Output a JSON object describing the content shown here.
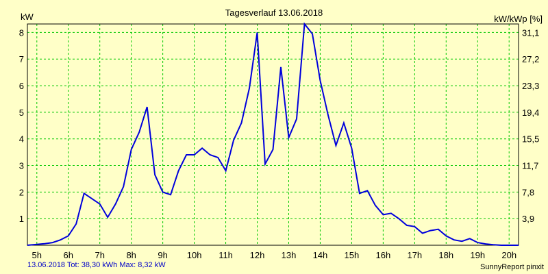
{
  "chart_data": {
    "type": "line",
    "title": "Tagesverlauf 13.06.2018",
    "ylabel_left": "kW",
    "ylabel_right": "kW/kWp [%]",
    "ylim": [
      0,
      8.32
    ],
    "xlim": [
      4.7,
      20.3
    ],
    "x_ticks": [
      "5h",
      "6h",
      "7h",
      "8h",
      "9h",
      "10h",
      "11h",
      "12h",
      "13h",
      "14h",
      "15h",
      "16h",
      "17h",
      "18h",
      "19h",
      "20h"
    ],
    "y_ticks_left": [
      "1",
      "2",
      "3",
      "4",
      "5",
      "6",
      "7",
      "8"
    ],
    "y_ticks_right": [
      "3,9",
      "7,8",
      "11,7",
      "15,5",
      "19,4",
      "23,3",
      "27,2",
      "31,1"
    ],
    "grid": true,
    "line_color": "#0000dc",
    "grid_color": "#00c800",
    "series": [
      {
        "x": [
          4.7,
          5.0,
          5.25,
          5.5,
          5.75,
          6.0,
          6.25,
          6.5,
          6.75,
          7.0,
          7.25,
          7.5,
          7.75,
          8.0,
          8.25,
          8.5,
          8.75,
          9.0,
          9.25,
          9.5,
          9.75,
          10.0,
          10.25,
          10.5,
          10.75,
          11.0,
          11.25,
          11.5,
          11.75,
          12.0,
          12.25,
          12.5,
          12.75,
          13.0,
          13.25,
          13.5,
          13.75,
          14.0,
          14.25,
          14.5,
          14.75,
          15.0,
          15.25,
          15.5,
          15.75,
          16.0,
          16.25,
          16.5,
          16.75,
          17.0,
          17.25,
          17.5,
          17.75,
          18.0,
          18.25,
          18.5,
          18.75,
          19.0,
          19.25,
          19.5,
          19.75,
          20.0,
          20.3
        ],
        "values": [
          0.0,
          0.03,
          0.06,
          0.1,
          0.2,
          0.35,
          0.8,
          1.95,
          1.75,
          1.55,
          1.05,
          1.55,
          2.2,
          3.6,
          4.25,
          5.2,
          2.65,
          2.0,
          1.9,
          2.8,
          3.4,
          3.4,
          3.65,
          3.4,
          3.3,
          2.8,
          3.95,
          4.6,
          5.9,
          8.0,
          3.05,
          3.6,
          6.7,
          4.05,
          4.75,
          8.32,
          7.95,
          6.2,
          4.9,
          3.75,
          4.6,
          3.65,
          1.95,
          2.05,
          1.5,
          1.15,
          1.2,
          1.0,
          0.75,
          0.7,
          0.45,
          0.55,
          0.6,
          0.35,
          0.2,
          0.15,
          0.25,
          0.1,
          0.05,
          0.02,
          0.0,
          0.0,
          0.0
        ]
      }
    ]
  },
  "footer": {
    "left": "13.06.2018 Tot: 38,30 kWh Max: 8,32 kW",
    "right": "SunnyReport pinxit"
  }
}
